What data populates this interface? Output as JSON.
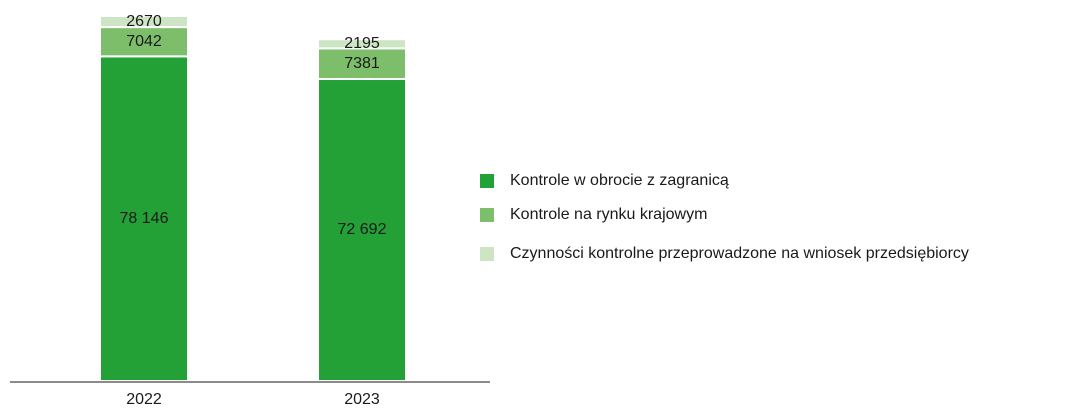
{
  "chart_data": {
    "type": "stacked_bar",
    "categories": [
      "2022",
      "2023"
    ],
    "series": [
      {
        "name": "Kontrole w obrocie z zagranicą",
        "color": "#23a136",
        "values": [
          78146,
          72692
        ],
        "value_labels": [
          "78 146",
          "72 692"
        ]
      },
      {
        "name": "Kontrole na rynku krajowym",
        "color": "#7dbe6a",
        "values": [
          7042,
          7381
        ]
      },
      {
        "name": "Czynności kontrolne przeprowadzone na wniosek przedsiębiorcy",
        "color": "#cde5c4",
        "values": [
          2670,
          2195
        ]
      }
    ],
    "legend": "right"
  }
}
